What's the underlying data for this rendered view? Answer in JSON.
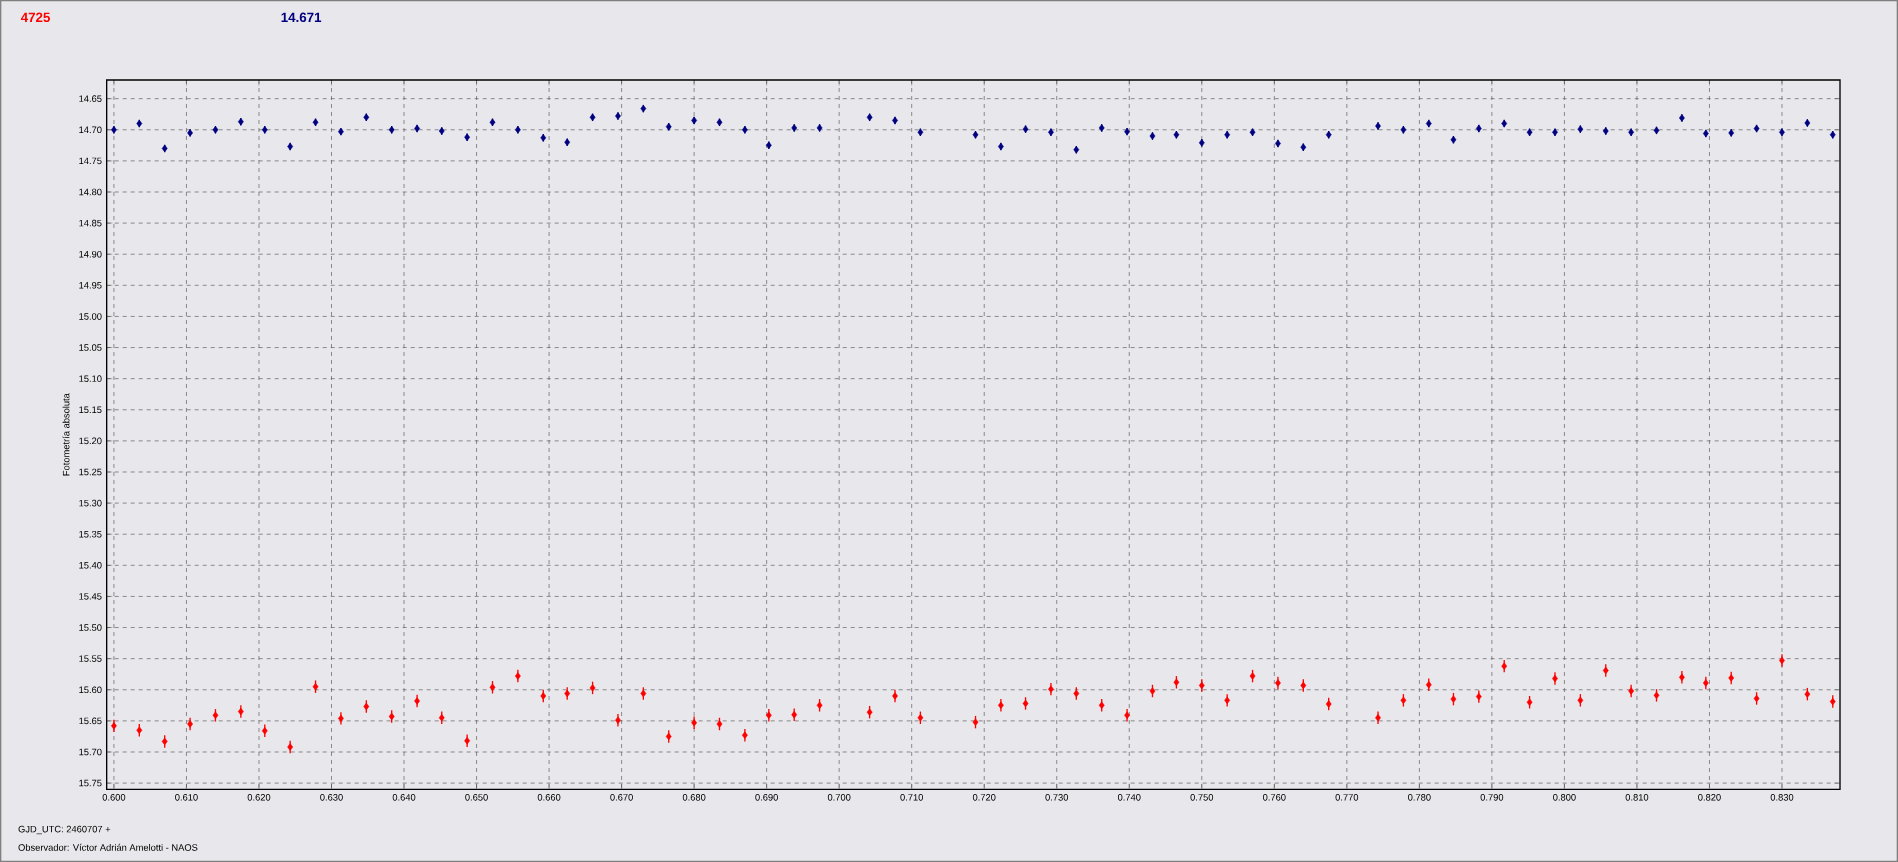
{
  "chart_data": {
    "type": "scatter",
    "xlabel": "GJD_UTC: 2460707 +",
    "ylabel": "Fotometría absoluta",
    "annotations": [
      "Observador: Víctor Adrián Amelotti - NAOS"
    ],
    "x": [
      0.6,
      0.6035,
      0.607,
      0.6105,
      0.614,
      0.6175,
      0.6208,
      0.6243,
      0.6278,
      0.6313,
      0.6348,
      0.6383,
      0.6418,
      0.6452,
      0.6487,
      0.6522,
      0.6557,
      0.6592,
      0.6625,
      0.666,
      0.6695,
      0.673,
      0.6765,
      0.68,
      0.6835,
      0.687,
      0.6903,
      0.6938,
      0.6973,
      0.7042,
      0.7077,
      0.7112,
      0.7188,
      0.7223,
      0.7257,
      0.7292,
      0.7327,
      0.7362,
      0.7397,
      0.7432,
      0.7465,
      0.75,
      0.7535,
      0.757,
      0.7605,
      0.764,
      0.7675,
      0.7743,
      0.7778,
      0.7813,
      0.7847,
      0.7882,
      0.7917,
      0.7952,
      0.7987,
      0.8022,
      0.8057,
      0.8092,
      0.8127,
      0.8162,
      0.8195,
      0.823,
      0.8265,
      0.83,
      0.8335,
      0.837
    ],
    "series": [
      {
        "name": "4725",
        "color": "#ff0000",
        "values": [
          15.658,
          15.665,
          15.683,
          15.655,
          15.641,
          15.635,
          15.666,
          15.692,
          15.595,
          15.646,
          15.627,
          15.643,
          15.618,
          15.645,
          15.682,
          15.596,
          15.578,
          15.61,
          15.606,
          15.597,
          15.649,
          15.606,
          15.675,
          15.653,
          15.655,
          15.673,
          15.641,
          15.64,
          15.625,
          15.636,
          15.61,
          15.645,
          15.652,
          15.625,
          15.622,
          15.599,
          15.606,
          15.625,
          15.641,
          15.602,
          15.588,
          15.593,
          15.617,
          15.578,
          15.589,
          15.593,
          15.623,
          15.645,
          15.617,
          15.592,
          15.615,
          15.611,
          15.562,
          15.62,
          15.582,
          15.617,
          15.569,
          15.602,
          15.609,
          15.58,
          15.589,
          15.581,
          15.614,
          15.553,
          15.607,
          15.619
        ],
        "errors": [
          0.01,
          0.01,
          0.01,
          0.01,
          0.01,
          0.01,
          0.01,
          0.01,
          0.01,
          0.01,
          0.01,
          0.01,
          0.01,
          0.01,
          0.01,
          0.01,
          0.01,
          0.01,
          0.01,
          0.01,
          0.01,
          0.01,
          0.01,
          0.01,
          0.01,
          0.01,
          0.01,
          0.01,
          0.01,
          0.01,
          0.01,
          0.01,
          0.01,
          0.01,
          0.01,
          0.01,
          0.01,
          0.01,
          0.01,
          0.01,
          0.01,
          0.01,
          0.01,
          0.01,
          0.01,
          0.01,
          0.01,
          0.01,
          0.01,
          0.01,
          0.01,
          0.01,
          0.01,
          0.01,
          0.01,
          0.01,
          0.01,
          0.01,
          0.01,
          0.01,
          0.01,
          0.01,
          0.01,
          0.01,
          0.01,
          0.01
        ]
      },
      {
        "name": "14.671",
        "color": "#000080",
        "values": [
          14.7,
          14.69,
          14.73,
          14.705,
          14.7,
          14.687,
          14.7,
          14.727,
          14.688,
          14.703,
          14.68,
          14.7,
          14.698,
          14.702,
          14.712,
          14.688,
          14.7,
          14.713,
          14.72,
          14.68,
          14.678,
          14.666,
          14.695,
          14.685,
          14.688,
          14.7,
          14.725,
          14.697,
          14.697,
          14.68,
          14.685,
          14.704,
          14.708,
          14.727,
          14.699,
          14.704,
          14.732,
          14.697,
          14.703,
          14.71,
          14.708,
          14.721,
          14.708,
          14.704,
          14.722,
          14.728,
          14.708,
          14.694,
          14.7,
          14.69,
          14.716,
          14.698,
          14.69,
          14.704,
          14.704,
          14.699,
          14.702,
          14.704,
          14.701,
          14.681,
          14.706,
          14.705,
          14.698,
          14.704,
          14.689,
          14.708
        ],
        "errors": [
          0.006,
          0.006,
          0.006,
          0.006,
          0.006,
          0.006,
          0.006,
          0.006,
          0.006,
          0.006,
          0.006,
          0.006,
          0.006,
          0.006,
          0.006,
          0.006,
          0.006,
          0.006,
          0.006,
          0.006,
          0.006,
          0.006,
          0.006,
          0.006,
          0.006,
          0.006,
          0.006,
          0.006,
          0.006,
          0.006,
          0.006,
          0.006,
          0.006,
          0.006,
          0.006,
          0.006,
          0.006,
          0.006,
          0.006,
          0.006,
          0.006,
          0.006,
          0.006,
          0.006,
          0.006,
          0.006,
          0.006,
          0.006,
          0.006,
          0.006,
          0.006,
          0.006,
          0.006,
          0.006,
          0.006,
          0.006,
          0.006,
          0.006,
          0.006,
          0.006,
          0.006,
          0.006,
          0.006,
          0.006,
          0.006,
          0.006
        ]
      }
    ],
    "xlim": [
      0.599,
      0.838
    ],
    "ylim": [
      15.76,
      14.62
    ],
    "xticks": [
      {
        "value": 0.6,
        "label": "0.600"
      },
      {
        "value": 0.61,
        "label": "0.610"
      },
      {
        "value": 0.62,
        "label": "0.620"
      },
      {
        "value": 0.63,
        "label": "0.630"
      },
      {
        "value": 0.64,
        "label": "0.640"
      },
      {
        "value": 0.65,
        "label": "0.650"
      },
      {
        "value": 0.66,
        "label": "0.660"
      },
      {
        "value": 0.67,
        "label": "0.670"
      },
      {
        "value": 0.68,
        "label": "0.680"
      },
      {
        "value": 0.69,
        "label": "0.690"
      },
      {
        "value": 0.7,
        "label": "0.700"
      },
      {
        "value": 0.71,
        "label": "0.710"
      },
      {
        "value": 0.72,
        "label": "0.720"
      },
      {
        "value": 0.73,
        "label": "0.730"
      },
      {
        "value": 0.74,
        "label": "0.740"
      },
      {
        "value": 0.75,
        "label": "0.750"
      },
      {
        "value": 0.76,
        "label": "0.760"
      },
      {
        "value": 0.77,
        "label": "0.770"
      },
      {
        "value": 0.78,
        "label": "0.780"
      },
      {
        "value": 0.79,
        "label": "0.790"
      },
      {
        "value": 0.8,
        "label": "0.800"
      },
      {
        "value": 0.81,
        "label": "0.810"
      },
      {
        "value": 0.82,
        "label": "0.820"
      },
      {
        "value": 0.83,
        "label": "0.830"
      }
    ],
    "yticks": [
      14.65,
      {
        "value": 14.7,
        "label": "14.70"
      },
      14.75,
      {
        "value": 14.8,
        "label": "14.80"
      },
      14.85,
      {
        "value": 14.9,
        "label": "14.90"
      },
      14.95,
      {
        "value": 15,
        "label": "15.00"
      },
      15.05,
      {
        "value": 15.1,
        "label": "15.10"
      },
      15.15,
      {
        "value": 15.2,
        "label": "15.20"
      },
      15.25,
      {
        "value": 15.3,
        "label": "15.30"
      },
      15.35,
      {
        "value": 15.4,
        "label": "15.40"
      },
      15.45,
      {
        "value": 15.5,
        "label": "15.50"
      },
      15.55,
      {
        "value": 15.6,
        "label": "15.60"
      },
      15.65,
      {
        "value": 15.7,
        "label": "15.70"
      },
      15.75
    ],
    "grid": true,
    "marker": "diamond",
    "legend": false
  }
}
